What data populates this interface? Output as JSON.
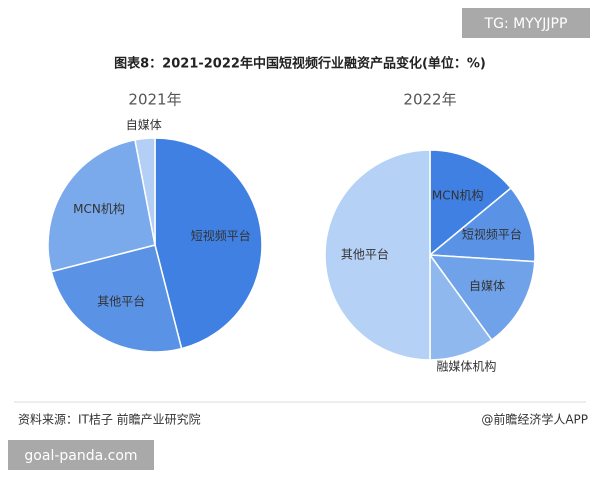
{
  "header": {
    "title": "图表8：2021-2022年中国短视频行业融资产品变化(单位：%)",
    "badge": "TG: MYYJJPP"
  },
  "chart_data": [
    {
      "type": "pie",
      "title": "2021年",
      "categories": [
        "短视频平台",
        "其他平台",
        "MCN机构",
        "自媒体"
      ],
      "values": [
        46,
        25,
        26,
        3
      ],
      "colors": [
        "#3f80e2",
        "#5a93e6",
        "#7aa9ec",
        "#b3cff5"
      ]
    },
    {
      "type": "pie",
      "title": "2022年",
      "categories": [
        "MCN机构",
        "短视频平台",
        "自媒体",
        "融媒体机构",
        "其他平台"
      ],
      "values": [
        14,
        12,
        14,
        10,
        50
      ],
      "colors": [
        "#3f80e2",
        "#5a93e6",
        "#6fa2e9",
        "#8fb8ef",
        "#b6d1f6"
      ]
    }
  ],
  "footer": {
    "source": "资料来源：IT桔子 前瞻产业研究院",
    "brand": "@前瞻经济学人APP",
    "watermark": "goal-panda.com"
  }
}
